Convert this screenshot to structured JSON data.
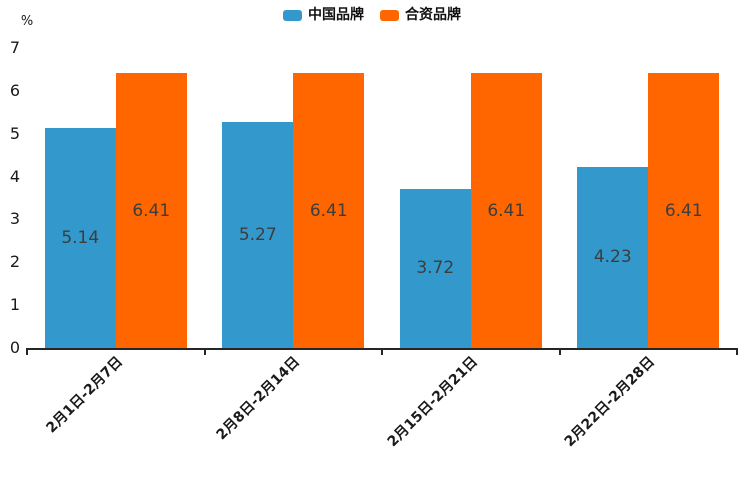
{
  "chart_data": {
    "type": "bar",
    "title": "",
    "xlabel": "",
    "ylabel": "%",
    "ylim": [
      0,
      7
    ],
    "yticks": [
      0,
      1,
      2,
      3,
      4,
      5,
      6,
      7
    ],
    "grid": false,
    "legend_position": "top-center",
    "value_labels": "inside-center",
    "categories": [
      "2月1日-2月7日",
      "2月8日-2月14日",
      "2月15日-2月21日",
      "2月22日-2月28日"
    ],
    "series": [
      {
        "name": "中国品牌",
        "color": "#3398cc",
        "values": [
          5.14,
          5.27,
          3.72,
          4.23
        ]
      },
      {
        "name": "合资品牌",
        "color": "#ff6600",
        "values": [
          6.41,
          6.41,
          6.41,
          6.41
        ]
      }
    ],
    "colors": {
      "axis": "#262626",
      "value_label": "#3d3d3d",
      "tick_label": "#1a1a1a"
    }
  }
}
